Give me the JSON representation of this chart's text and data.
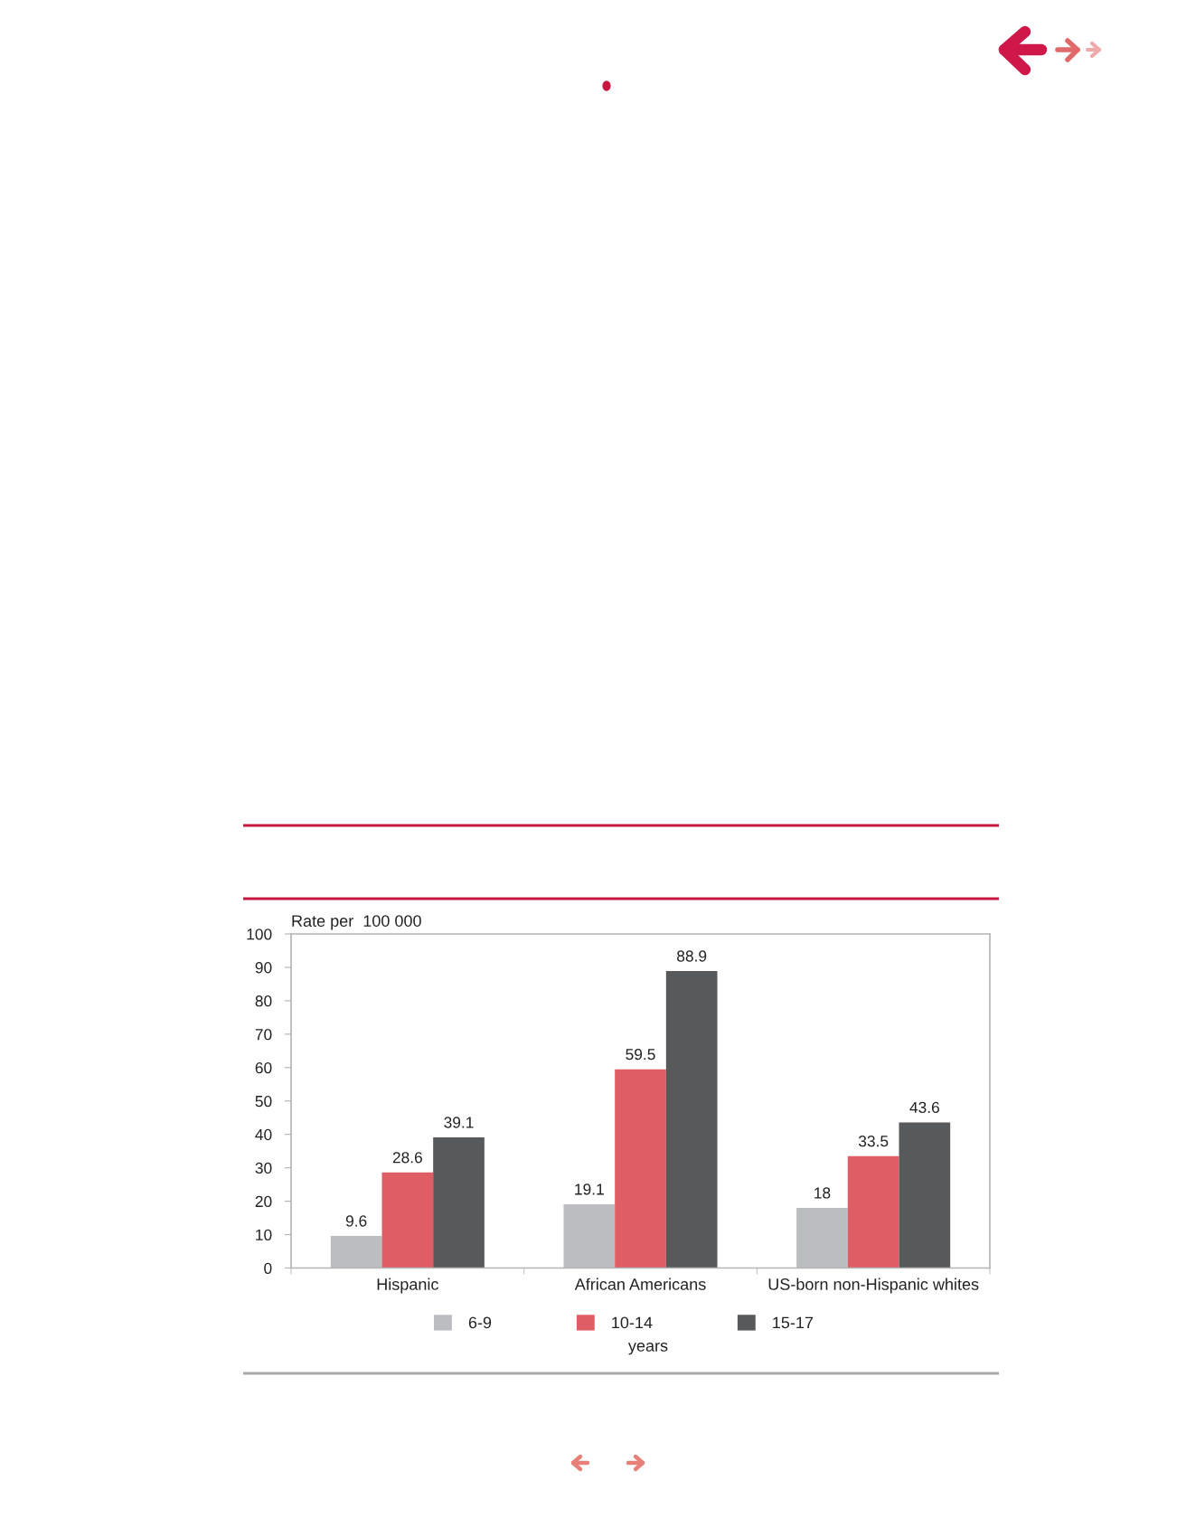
{
  "chart_data": {
    "type": "bar",
    "ylabel": "Rate per  100 000",
    "categories": [
      "Hispanic",
      "African Americans",
      "US-born non-Hispanic whites"
    ],
    "series": [
      {
        "name": "6-9",
        "color": "#bcbdc0",
        "values": [
          9.6,
          19.1,
          18
        ]
      },
      {
        "name": "10-14",
        "color": "#df5e66",
        "values": [
          28.6,
          59.5,
          33.5
        ]
      },
      {
        "name": "15-17",
        "color": "#58595b",
        "values": [
          39.1,
          88.9,
          43.6
        ]
      }
    ],
    "ylim": [
      0,
      100
    ],
    "yticks": [
      0,
      10,
      20,
      30,
      40,
      50,
      60,
      70,
      80,
      90,
      100
    ],
    "data_labels": true,
    "legend": "bottom",
    "legend_title": "years"
  }
}
